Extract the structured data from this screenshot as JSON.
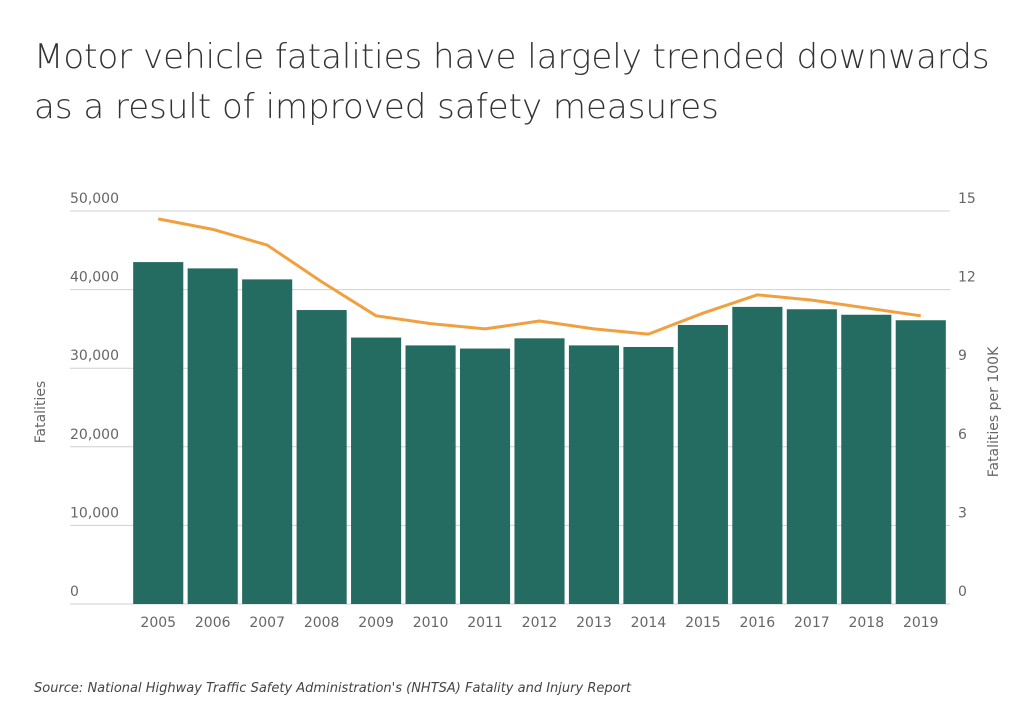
{
  "chart_data": {
    "type": "bar",
    "title": "Motor vehicle fatalities have largely trended downwards as a result of improved safety measures",
    "source": "Source:  National Highway Traffic Safety Administration's (NHTSA) Fatality and Injury Report",
    "y_label": "Fatalities",
    "y2_label": "Fatalities per 100K",
    "categories": [
      "2005",
      "2006",
      "2007",
      "2008",
      "2009",
      "2010",
      "2011",
      "2012",
      "2013",
      "2014",
      "2015",
      "2016",
      "2017",
      "2018",
      "2019"
    ],
    "series": [
      {
        "type": "bar",
        "color": "#246b61",
        "values": [
          43500,
          42700,
          41300,
          37400,
          33900,
          32900,
          32500,
          33800,
          32900,
          32700,
          35500,
          37800,
          37500,
          36800,
          36100
        ]
      },
      {
        "type": "line",
        "color": "#f0a040",
        "axis": "y2",
        "values": [
          14.7,
          14.3,
          13.7,
          12.3,
          11.0,
          10.7,
          10.5,
          10.8,
          10.5,
          10.3,
          11.1,
          11.8,
          11.6,
          11.3,
          11.0
        ]
      }
    ],
    "ylim": [
      0,
      50000
    ],
    "yticks": [
      0,
      {
        "value": 10000,
        "label": "10,000"
      },
      {
        "value": 20000,
        "label": "20,000"
      },
      {
        "value": 30000,
        "label": "30,000"
      },
      {
        "value": 40000,
        "label": "40,000"
      },
      {
        "value": 50000,
        "label": "50,000"
      }
    ],
    "y2lim": [
      0,
      15
    ],
    "y2ticks": [
      0,
      3,
      6,
      9,
      12,
      15
    ],
    "grid": true
  }
}
